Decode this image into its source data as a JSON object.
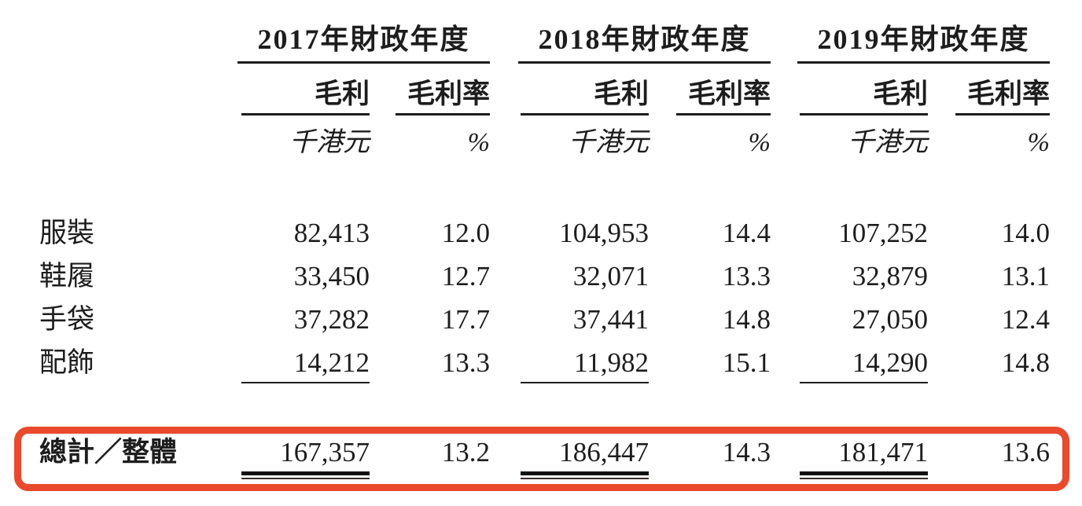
{
  "table": {
    "year_groups": [
      {
        "year_label": "2017年財政年度",
        "col_profit": "毛利",
        "col_margin": "毛利率",
        "unit_profit": "千港元",
        "unit_margin": "%"
      },
      {
        "year_label": "2018年財政年度",
        "col_profit": "毛利",
        "col_margin": "毛利率",
        "unit_profit": "千港元",
        "unit_margin": "%"
      },
      {
        "year_label": "2019年財政年度",
        "col_profit": "毛利",
        "col_margin": "毛利率",
        "unit_profit": "千港元",
        "unit_margin": "%"
      }
    ],
    "rows": [
      {
        "label": "服裝",
        "values": [
          "82,413",
          "12.0",
          "104,953",
          "14.4",
          "107,252",
          "14.0"
        ]
      },
      {
        "label": "鞋履",
        "values": [
          "33,450",
          "12.7",
          "32,071",
          "13.3",
          "32,879",
          "13.1"
        ]
      },
      {
        "label": "手袋",
        "values": [
          "37,282",
          "17.7",
          "37,441",
          "14.8",
          "27,050",
          "12.4"
        ]
      },
      {
        "label": "配飾",
        "values": [
          "14,212",
          "13.3",
          "11,982",
          "15.1",
          "14,290",
          "14.8"
        ]
      }
    ],
    "total_row": {
      "label": "總計／整體",
      "values": [
        "167,357",
        "13.2",
        "186,447",
        "14.3",
        "181,471",
        "13.6"
      ]
    },
    "highlight_color": "#E94A2B",
    "text_color": "#1d1d1d"
  }
}
